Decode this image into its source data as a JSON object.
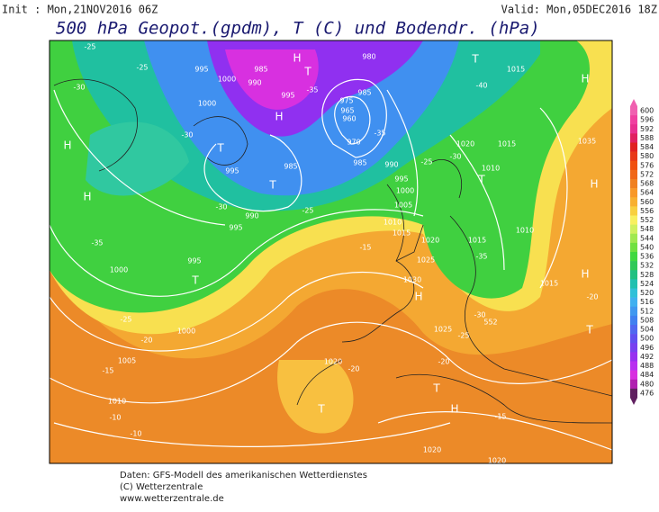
{
  "header": {
    "init": "Init : Mon,21NOV2016 06Z",
    "valid": "Valid: Mon,05DEC2016 18Z",
    "title": "500 hPa Geopot.(gpdm), T (C) und Bodendr. (hPa)"
  },
  "footer": [
    "Daten: GFS-Modell des amerikanischen Wetterdienstes",
    "(C) Wetterzentrale",
    "www.wetterzentrale.de"
  ],
  "colorbar": {
    "ticks": [
      600,
      596,
      592,
      588,
      584,
      580,
      576,
      572,
      568,
      564,
      560,
      556,
      552,
      548,
      544,
      540,
      536,
      532,
      528,
      524,
      520,
      516,
      512,
      508,
      504,
      500,
      496,
      492,
      488,
      484,
      480,
      476
    ],
    "colors": [
      "#f060b0",
      "#f040a0",
      "#e83090",
      "#e02060",
      "#e02020",
      "#e83818",
      "#f05010",
      "#f06818",
      "#f08020",
      "#f89828",
      "#f8b030",
      "#f8d040",
      "#f8f060",
      "#d0f060",
      "#a0e850",
      "#70e040",
      "#40d840",
      "#30c858",
      "#20c080",
      "#20c0b0",
      "#30c0d8",
      "#40b0f0",
      "#4098f0",
      "#4080f0",
      "#5068f0",
      "#6050f0",
      "#7840f0",
      "#9830f0",
      "#b830f0",
      "#d830e0",
      "#b020b0",
      "#602060"
    ]
  },
  "map_labels": [
    "H",
    "H",
    "T",
    "T",
    "H",
    "T",
    "H",
    "T",
    "H",
    "T",
    "H",
    "H",
    "H",
    "T",
    "T",
    "T",
    "H",
    "T",
    "995",
    "985",
    "990",
    "1000",
    "995",
    "980",
    "985",
    "975",
    "965",
    "960",
    "970",
    "985",
    "990",
    "995",
    "1000",
    "1005",
    "1010",
    "1015",
    "1020",
    "1025",
    "1030",
    "1025",
    "1020",
    "1010",
    "1005",
    "1000",
    "1000",
    "995",
    "995",
    "990",
    "985",
    "995",
    "1000",
    "1015",
    "1020",
    "1015",
    "1010",
    "1035",
    "1015",
    "1010",
    "1015",
    "1020",
    "1020",
    "552",
    "-25",
    "-30",
    "-25",
    "-30",
    "-35",
    "-30",
    "-25",
    "-30",
    "-25",
    "-40",
    "-35",
    "-35",
    "-15",
    "-25",
    "-20",
    "-15",
    "-10",
    "-10",
    "-20",
    "-20",
    "-25",
    "-30",
    "-35",
    "-15",
    "-20"
  ]
}
